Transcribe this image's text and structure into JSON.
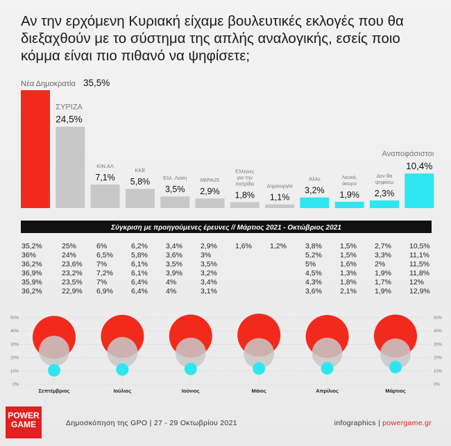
{
  "question": "Αν την ερχόμενη Κυριακή είχαμε βουλευτικές εκλογές που θα διεξαχθούν με το σύστημα της απλής αναλογικής, εσείς ποιο κόμμα είναι πιο πιθανό να ψηφίσετε;",
  "comparison_title": "Σύγκριση με προηγούμενες έρευνες // Μάρτιος 2021 - Οκτώβριος 2021",
  "footer": {
    "source": "Δημοσκόπηση της GPO | 27 - 29 Οκτωβρίου 2021",
    "credit_prefix": "infographics | ",
    "credit_brand": "powergame.gr",
    "logo_line1": "POWER",
    "logo_line2": "GAME"
  },
  "colors": {
    "nd": "#f22a1c",
    "gray": "#c8c8c8",
    "cyan": "#2ee6f0",
    "black": "#111111"
  },
  "chart_data": [
    {
      "type": "bar",
      "categories": [
        "Νέα Δημοκρατία",
        "ΣΥΡΙΖΑ",
        "ΚΙΝ.ΑΛ",
        "ΚΚΕ",
        "Ελλ. Λύση",
        "ΜέΡΑ25",
        "Ελληνες για την πατρίδα",
        "Δημιουργία",
        "Αλλο",
        "Λευκό, άκυρο",
        "Δεν θα ψηφίσω",
        "Αναποφάσιστοι"
      ],
      "label_lines": [
        [
          "Νέα Δημοκρατία"
        ],
        [
          "ΣΥΡΙΖΑ"
        ],
        [
          "ΚΙΝ.ΑΛ"
        ],
        [
          "ΚΚΕ"
        ],
        [
          "Ελλ. Λύση"
        ],
        [
          "ΜέΡΑ25"
        ],
        [
          "Ελληνες",
          "για την",
          "πατρίδα"
        ],
        [
          "Δημιουργία"
        ],
        [
          "Αλλο"
        ],
        [
          "Λευκό,",
          "άκυρο"
        ],
        [
          "Δεν θα",
          "ψηφίσω"
        ],
        [
          "Αναποφάσιστοι"
        ]
      ],
      "values": [
        35.5,
        24.5,
        7.1,
        5.8,
        3.5,
        2.9,
        1.8,
        1.1,
        3.2,
        1.9,
        2.3,
        10.4
      ],
      "value_labels": [
        "35,5%",
        "24,5%",
        "7,1%",
        "5,8%",
        "3,5%",
        "2,9%",
        "1,8%",
        "1,1%",
        "3,2%",
        "1,9%",
        "2,3%",
        "10,4%"
      ],
      "bar_colors": [
        "nd",
        "gray",
        "gray",
        "gray",
        "gray",
        "gray",
        "gray",
        "gray",
        "cyan",
        "cyan",
        "cyan",
        "cyan"
      ],
      "ylim": [
        0,
        35.5
      ]
    },
    {
      "type": "table",
      "columns": [
        "ΝΔ",
        "ΣΥΡΙΖΑ",
        "ΚΙΝ.ΑΛ",
        "ΚΚΕ",
        "Ελλ. Λύση",
        "ΜέΡΑ25",
        "Ελληνες για την πατρίδα",
        "Δημιουργία",
        "Αλλο",
        "Λευκό, άκυρο",
        "Δεν θα ψηφίσω",
        "Αναποφάσιστοι"
      ],
      "rows": [
        [
          "35,2%",
          "25%",
          "6%",
          "6,2%",
          "3,4%",
          "2,9%",
          "1,6%",
          "1,2%",
          "3,8%",
          "1,5%",
          "2,7%",
          "10,5%"
        ],
        [
          "36%",
          "24%",
          "6,5%",
          "5,8%",
          "3,6%",
          "3%",
          "",
          "",
          "5,2%",
          "1,5%",
          "3,3%",
          "11,1%"
        ],
        [
          "36,2%",
          "23,6%",
          "7%",
          "6,1%",
          "3,5%",
          "3,5%",
          "",
          "",
          "5%",
          "1,6%",
          "2%",
          "11,5%"
        ],
        [
          "36,9%",
          "23,2%",
          "7,2%",
          "6,1%",
          "3,9%",
          "3,2%",
          "",
          "",
          "4,5%",
          "1,3%",
          "1,9%",
          "11,8%"
        ],
        [
          "35,9%",
          "23,5%",
          "7%",
          "6,4%",
          "4%",
          "3,4%",
          "",
          "",
          "4,3%",
          "1,8%",
          "1,7%",
          "12%"
        ],
        [
          "36,2%",
          "22,9%",
          "6,9%",
          "6,4%",
          "4%",
          "3,1%",
          "",
          "",
          "3,6%",
          "2,1%",
          "1,9%",
          "12,9%"
        ]
      ]
    },
    {
      "type": "scatter",
      "categories": [
        "Σεπτέμβριος",
        "Ιούλιος",
        "Ιούνιος",
        "Μάιος",
        "Απρίλιος",
        "Μάρτιος"
      ],
      "series": [
        {
          "color": "nd",
          "values": [
            35.2,
            36,
            36.2,
            36.9,
            35.9,
            36.2
          ]
        },
        {
          "color": "gray",
          "values": [
            25,
            24,
            23.6,
            23.2,
            23.5,
            22.9
          ]
        },
        {
          "color": "cyan",
          "values": [
            10.5,
            11.1,
            11.5,
            11.8,
            12,
            12.9
          ]
        }
      ],
      "yticks": [
        "50%",
        "40%",
        "30%",
        "20%",
        "10%",
        "0%"
      ],
      "ylim": [
        0,
        50
      ]
    }
  ]
}
